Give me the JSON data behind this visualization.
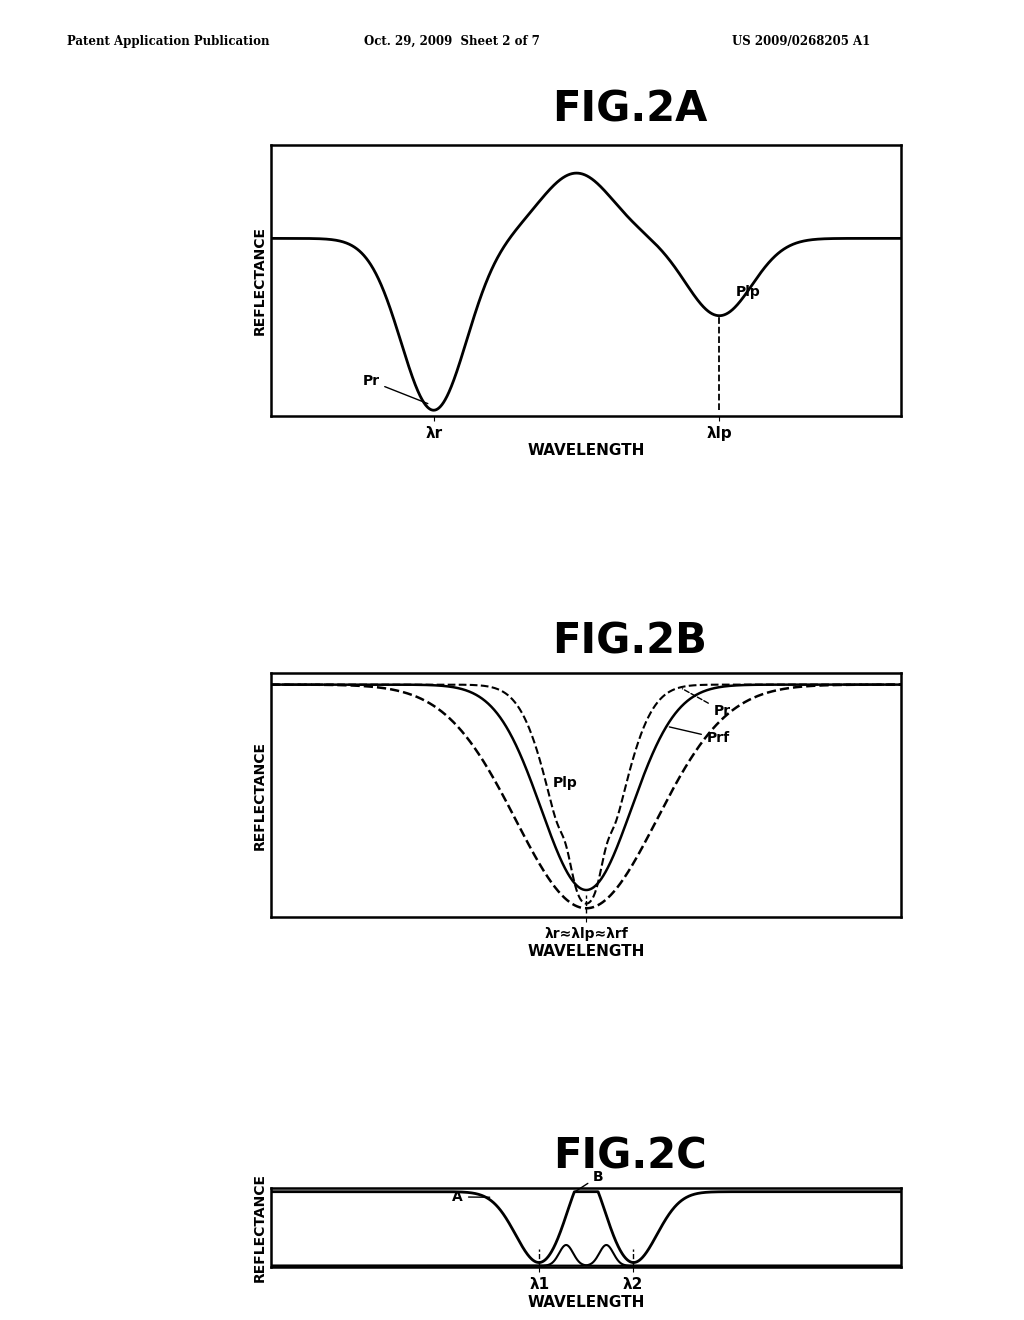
{
  "header_left": "Patent Application Publication",
  "header_center": "Oct. 29, 2009  Sheet 2 of 7",
  "header_right": "US 2009/0268205 A1",
  "fig2a_title": "FIG.2A",
  "fig2b_title": "FIG.2B",
  "fig2c_title": "FIG.2C",
  "ylabel": "REFLECTANCE",
  "xlabel_2a": "WAVELENGTH",
  "xlabel_2b": "WAVELENGTH",
  "xlabel_2c": "WAVELENGTH",
  "xtick_2a_0": "λr",
  "xtick_2a_1": "λlp",
  "xtick_2b_0": "λr≈λlp≈λrf",
  "xtick_2c_0": "λ1",
  "xtick_2c_1": "λ2",
  "label_Pr_2a": "Pr",
  "label_Plp_2a": "Plp",
  "label_Plp_2b": "Plp",
  "label_Prf_2b": "Prf",
  "label_Pr_2b": "Pr",
  "label_A_2c": "A",
  "label_B_2c": "B",
  "bg_color": "#ffffff",
  "line_color": "#000000"
}
